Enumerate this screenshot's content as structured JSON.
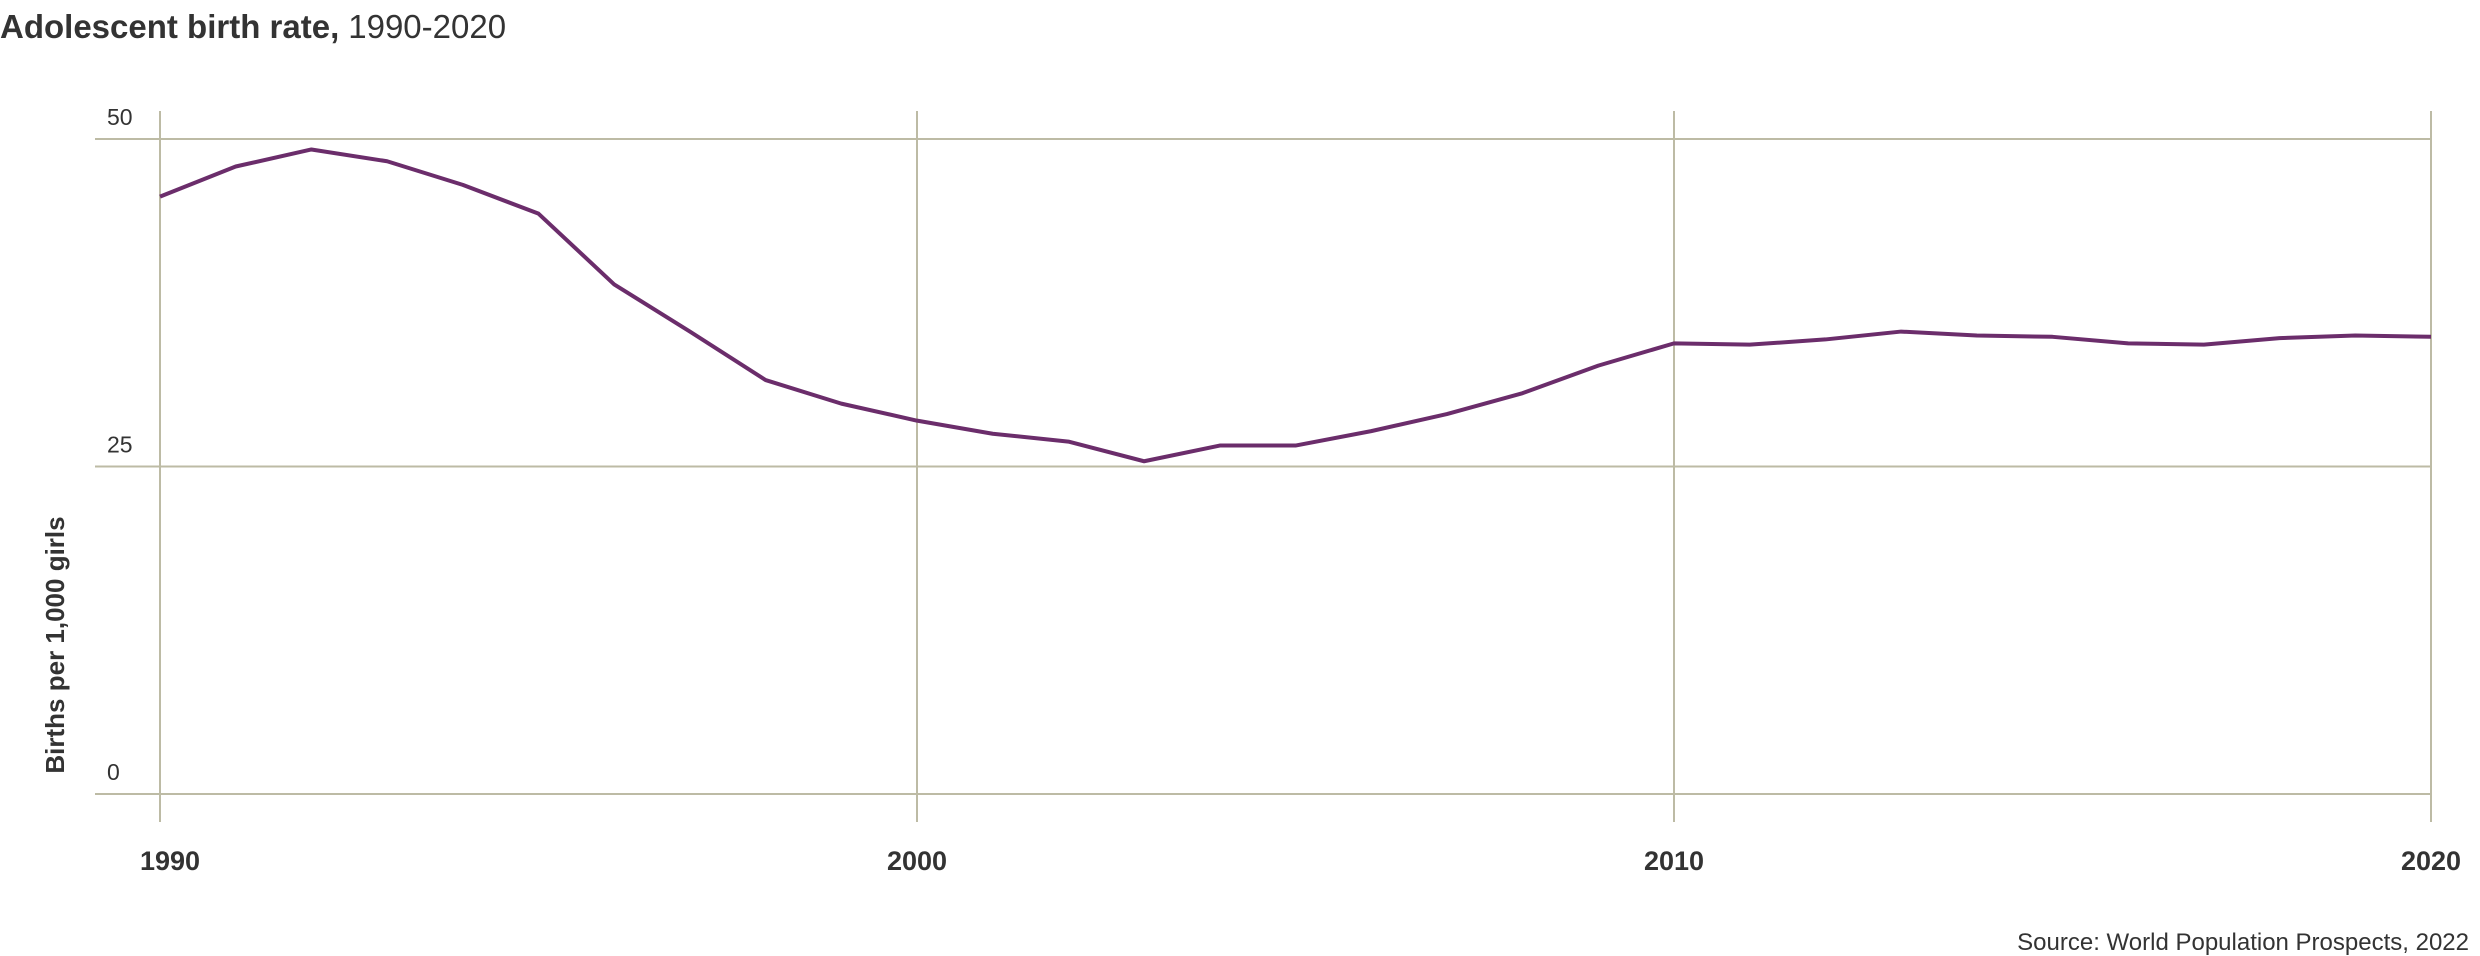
{
  "chart_data": {
    "type": "line",
    "title": "Adolescent birth rate,",
    "subtitle": "1990-2020",
    "y_label": "Births per 1,000 girls",
    "source": "Source: World Population Prospects, 2022",
    "x": [
      1990,
      1991,
      1992,
      1993,
      1994,
      1995,
      1996,
      1997,
      1998,
      1999,
      2000,
      2001,
      2002,
      2003,
      2004,
      2005,
      2006,
      2007,
      2008,
      2009,
      2010,
      2011,
      2012,
      2013,
      2014,
      2015,
      2016,
      2017,
      2018,
      2019,
      2020
    ],
    "series": [
      {
        "name": "Adolescent birth rate",
        "color": "#6b2d6b",
        "values": [
          45.6,
          47.9,
          49.2,
          48.3,
          46.5,
          44.3,
          38.9,
          35.3,
          31.6,
          29.8,
          28.5,
          27.5,
          26.9,
          25.4,
          26.6,
          26.6,
          27.7,
          29.0,
          30.6,
          32.7,
          34.4,
          34.3,
          34.7,
          35.3,
          35.0,
          34.9,
          34.4,
          34.3,
          34.8,
          35.0,
          34.9
        ]
      }
    ],
    "xlim": [
      1990,
      2020
    ],
    "xticks": [
      1990,
      2000,
      2010,
      2020
    ],
    "ylim": [
      0,
      50
    ],
    "yticks": [
      0,
      25,
      50
    ],
    "grid": true
  }
}
